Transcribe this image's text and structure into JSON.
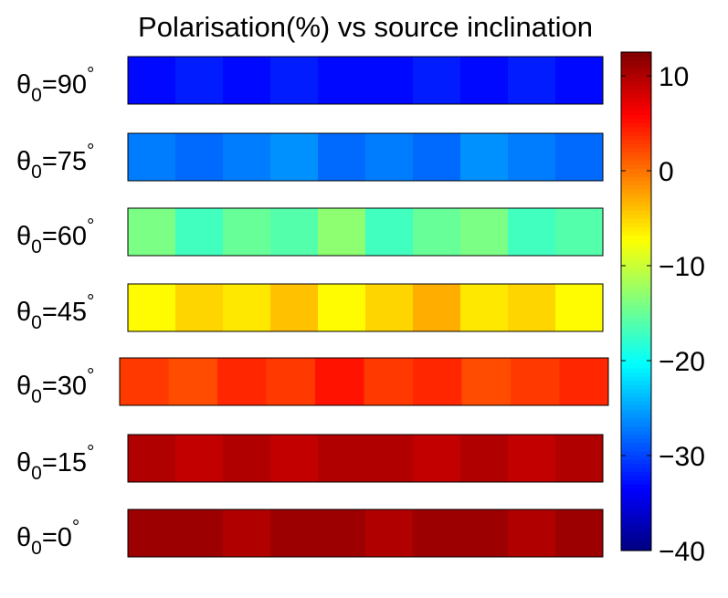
{
  "chart_data": {
    "type": "heatmap",
    "title": "Polarisation(%) vs source inclination",
    "rows": [
      {
        "label": "θ0=90°",
        "values": [
          -33,
          -32,
          -33,
          -32,
          -33,
          -33,
          -32,
          -33,
          -32,
          -33
        ]
      },
      {
        "label": "θ0=75°",
        "values": [
          -27,
          -28,
          -27,
          -26,
          -28,
          -27,
          -28,
          -26,
          -27,
          -28
        ]
      },
      {
        "label": "θ0=60°",
        "values": [
          -14,
          -17,
          -15,
          -16,
          -13,
          -17,
          -15,
          -14,
          -17,
          -16
        ]
      },
      {
        "label": "θ0=45°",
        "values": [
          -7,
          -5,
          -6,
          -4,
          -7,
          -5,
          -3,
          -6,
          -5,
          -7
        ]
      },
      {
        "label": "θ0=30°",
        "values": [
          3,
          2,
          4,
          3,
          5,
          3,
          4,
          2,
          3,
          4
        ]
      },
      {
        "label": "θ0=15°",
        "values": [
          10,
          9,
          10,
          9,
          10,
          10,
          9,
          10,
          9,
          10
        ]
      },
      {
        "label": "θ0=0°",
        "values": [
          11,
          11,
          10,
          11,
          11,
          10,
          11,
          11,
          10,
          11
        ]
      }
    ],
    "clim": [
      -40,
      12.5
    ],
    "cticks": [
      {
        "value": -40,
        "label": "−40"
      },
      {
        "value": -30,
        "label": "−30"
      },
      {
        "value": -20,
        "label": "−20"
      },
      {
        "value": -10,
        "label": "−10"
      },
      0,
      10
    ]
  }
}
